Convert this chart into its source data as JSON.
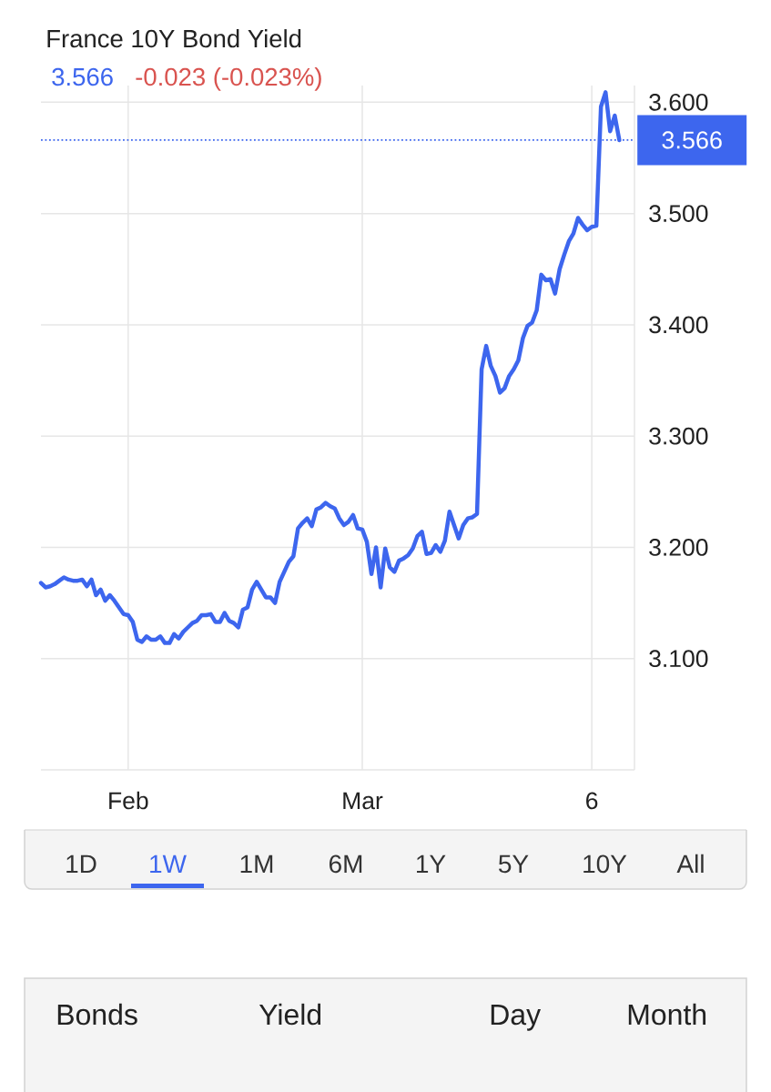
{
  "chart_data": {
    "type": "line",
    "title": "France 10Y Bond Yield",
    "subtitle": "3.566",
    "annotations": [
      "-0.023 (-0.023%)",
      "1D",
      "1W",
      "1M",
      "6M",
      "1Y",
      "5Y",
      "10Y",
      "All",
      "Bonds",
      "Yield",
      "Day",
      "Month"
    ],
    "categories": [
      null,
      null,
      null,
      null,
      null,
      null,
      null,
      null,
      null,
      null,
      null,
      null,
      null,
      null,
      null,
      null,
      null,
      null,
      null,
      "Feb",
      null,
      null,
      null,
      null,
      null,
      null,
      null,
      null,
      null,
      null,
      null,
      null,
      null,
      null,
      null,
      null,
      null,
      null,
      null,
      null,
      null,
      null,
      null,
      null,
      null,
      null,
      null,
      null,
      null,
      null,
      null,
      null,
      null,
      null,
      null,
      null,
      null,
      null,
      null,
      null,
      null,
      null,
      null,
      null,
      null,
      null,
      null,
      null,
      null,
      null,
      "Mar",
      null,
      null,
      null,
      null,
      null,
      null,
      null,
      null,
      null,
      null,
      null,
      null,
      null,
      null,
      null,
      null,
      null,
      null,
      null,
      null,
      null,
      null,
      null,
      null,
      null,
      null,
      null,
      null,
      null,
      null,
      null,
      null,
      null,
      null,
      null,
      null,
      null,
      null,
      null,
      null,
      null,
      null,
      null,
      null,
      null,
      null,
      null,
      null,
      null,
      "6",
      null,
      null,
      null,
      null,
      null,
      null
    ],
    "series": [
      {
        "color": "#3d66ee",
        "values": [
          3.168,
          3.164,
          3.165,
          3.167,
          3.17,
          3.173,
          3.171,
          3.17,
          3.17,
          3.171,
          3.165,
          3.171,
          3.157,
          3.162,
          3.152,
          3.157,
          3.152,
          3.146,
          3.14,
          3.139,
          3.133,
          3.117,
          3.115,
          3.12,
          3.117,
          3.117,
          3.12,
          3.114,
          3.114,
          3.122,
          3.118,
          3.124,
          3.128,
          3.132,
          3.134,
          3.139,
          3.139,
          3.14,
          3.133,
          3.133,
          3.141,
          3.134,
          3.132,
          3.128,
          3.144,
          3.146,
          3.162,
          3.169,
          3.162,
          3.155,
          3.155,
          3.15,
          3.169,
          3.178,
          3.187,
          3.192,
          3.217,
          3.222,
          3.226,
          3.219,
          3.234,
          3.236,
          3.24,
          3.237,
          3.235,
          3.226,
          3.22,
          3.223,
          3.229,
          3.217,
          3.216,
          3.205,
          3.176,
          3.2,
          3.164,
          3.199,
          3.182,
          3.178,
          3.188,
          3.19,
          3.193,
          3.199,
          3.21,
          3.214,
          3.194,
          3.195,
          3.202,
          3.196,
          3.206,
          3.232,
          3.22,
          3.208,
          3.22,
          3.226,
          3.227,
          3.23,
          3.36,
          3.381,
          3.363,
          3.354,
          3.339,
          3.343,
          3.354,
          3.36,
          3.368,
          3.388,
          3.399,
          3.402,
          3.413,
          3.445,
          3.44,
          3.441,
          3.428,
          3.45,
          3.463,
          3.475,
          3.482,
          3.496,
          3.49,
          3.485,
          3.488,
          3.489,
          3.596,
          3.609,
          3.574,
          3.588,
          3.566
        ]
      }
    ],
    "ylim": [
      3.0,
      3.615
    ],
    "yticks": [
      {
        "value": 3.1,
        "label": "3.100"
      },
      {
        "value": 3.2,
        "label": "3.200"
      },
      {
        "value": 3.3,
        "label": "3.300"
      },
      {
        "value": 3.4,
        "label": "3.400"
      },
      {
        "value": 3.5,
        "label": "3.500"
      },
      {
        "value": 3.6,
        "label": "3.600"
      }
    ],
    "grid": true,
    "ref_lines": [
      {
        "axis": "y",
        "value": 3.566,
        "label": "3.566",
        "color": "#3d66ee",
        "line_style": "dotted"
      }
    ]
  }
}
